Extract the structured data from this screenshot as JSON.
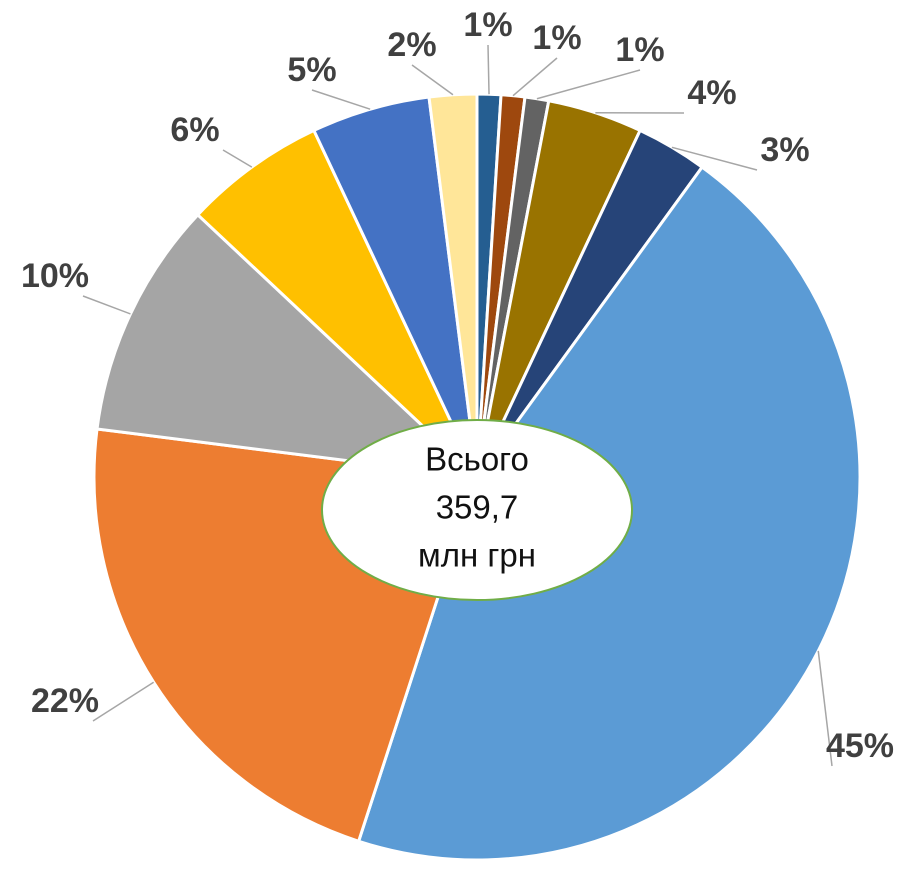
{
  "chart_data": {
    "type": "pie",
    "values": [
      1,
      1,
      1,
      4,
      3,
      45,
      22,
      10,
      6,
      5,
      2
    ],
    "value_labels": [
      "1%",
      "1%",
      "1%",
      "4%",
      "3%",
      "45%",
      "22%",
      "10%",
      "6%",
      "5%",
      "2%"
    ],
    "colors": [
      "#255e91",
      "#9e480e",
      "#636363",
      "#997300",
      "#264478",
      "#5b9bd5",
      "#ed7d31",
      "#a5a5a5",
      "#ffc000",
      "#4472c4",
      "#ffe699"
    ],
    "annotation": [
      "Всього",
      "359,7",
      "млн грн"
    ]
  }
}
